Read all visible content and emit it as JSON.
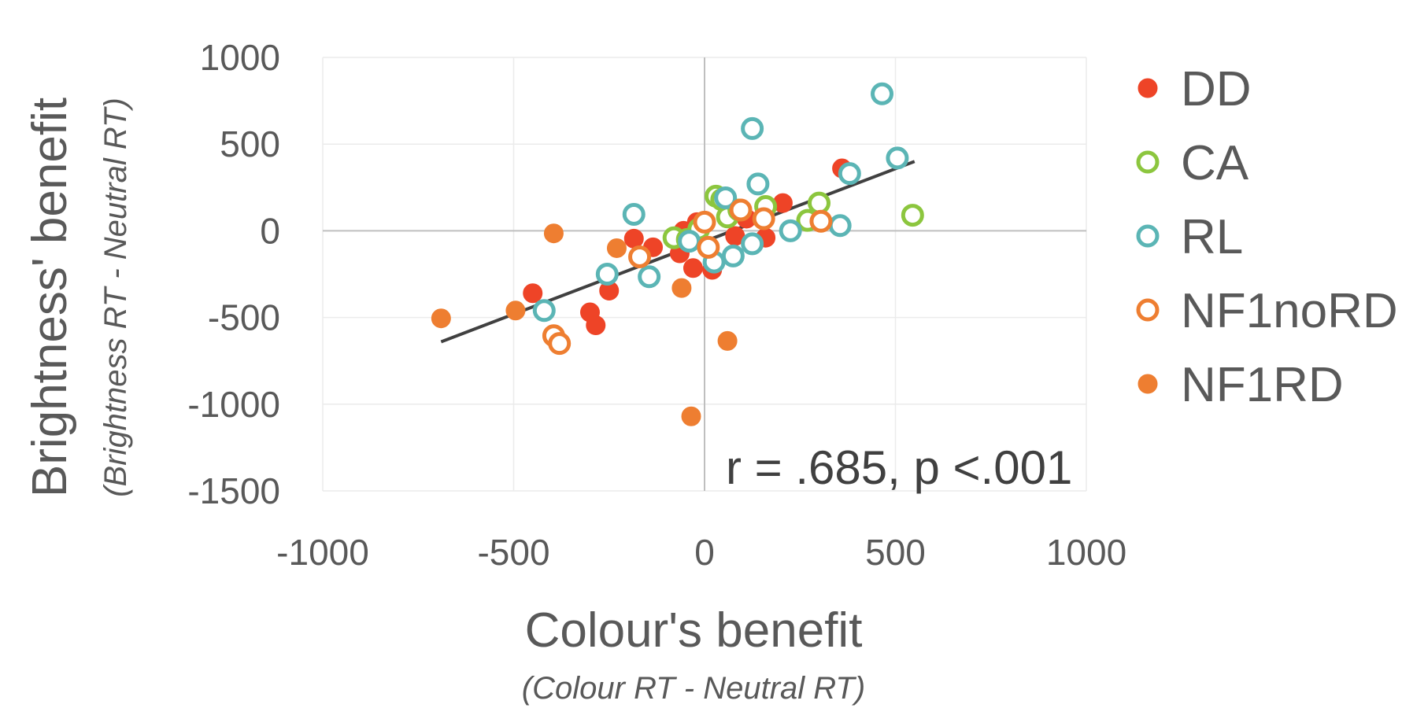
{
  "chart_data": {
    "type": "scatter",
    "xlabel": "Colour's benefit",
    "xlabel_sub": "(Colour RT - Neutral RT)",
    "ylabel": "Brightness' benefit",
    "ylabel_sub": "(Brightness RT - Neutral RT)",
    "xlim": [
      -1000,
      1000
    ],
    "ylim": [
      -1500,
      1000
    ],
    "x_ticks": [
      -1000,
      -500,
      0,
      500,
      1000
    ],
    "x_tick_labels": [
      "-1000",
      "-500",
      "0",
      "500",
      "1000"
    ],
    "y_ticks": [
      1000,
      500,
      0,
      -500,
      -1000,
      -1500
    ],
    "y_tick_labels": [
      "1000",
      "500",
      "0",
      "-500",
      "-1000",
      "-1500"
    ],
    "grid": true,
    "legend_position": "right",
    "annotation": "r = .685, p <.001",
    "trendline": {
      "x": [
        -690,
        550
      ],
      "y": [
        -640,
        400
      ],
      "color": "#404040"
    },
    "series": [
      {
        "name": "DD",
        "marker": "filled",
        "color": "#EE4427",
        "points": [
          [
            -450,
            -360
          ],
          [
            -300,
            -470
          ],
          [
            -285,
            -545
          ],
          [
            -250,
            -345
          ],
          [
            -185,
            -45
          ],
          [
            -135,
            -95
          ],
          [
            -65,
            -130
          ],
          [
            -55,
            0
          ],
          [
            -30,
            -215
          ],
          [
            -20,
            50
          ],
          [
            20,
            -225
          ],
          [
            80,
            -30
          ],
          [
            110,
            70
          ],
          [
            160,
            -40
          ],
          [
            205,
            160
          ],
          [
            360,
            360
          ]
        ]
      },
      {
        "name": "CA",
        "marker": "open",
        "color": "#8CC63E",
        "points": [
          [
            -80,
            -40
          ],
          [
            -45,
            -50
          ],
          [
            -15,
            10
          ],
          [
            30,
            200
          ],
          [
            45,
            180
          ],
          [
            60,
            80
          ],
          [
            90,
            120
          ],
          [
            160,
            140
          ],
          [
            270,
            60
          ],
          [
            300,
            160
          ],
          [
            545,
            90
          ]
        ]
      },
      {
        "name": "RL",
        "marker": "open",
        "color": "#5BB5B5",
        "points": [
          [
            -420,
            -460
          ],
          [
            -255,
            -250
          ],
          [
            -185,
            95
          ],
          [
            -145,
            -265
          ],
          [
            -40,
            -60
          ],
          [
            25,
            -180
          ],
          [
            55,
            190
          ],
          [
            75,
            -145
          ],
          [
            125,
            -75
          ],
          [
            125,
            590
          ],
          [
            140,
            270
          ],
          [
            225,
            0
          ],
          [
            355,
            30
          ],
          [
            380,
            330
          ],
          [
            465,
            790
          ],
          [
            505,
            420
          ]
        ]
      },
      {
        "name": "NF1noRD",
        "marker": "open",
        "color": "#EE7E31",
        "points": [
          [
            -395,
            -605
          ],
          [
            -380,
            -650
          ],
          [
            -170,
            -150
          ],
          [
            0,
            50
          ],
          [
            10,
            -95
          ],
          [
            95,
            120
          ],
          [
            155,
            70
          ],
          [
            305,
            55
          ]
        ]
      },
      {
        "name": "NF1RD",
        "marker": "filled",
        "color": "#EE7E31",
        "points": [
          [
            -690,
            -505
          ],
          [
            -495,
            -460
          ],
          [
            -395,
            -15
          ],
          [
            -230,
            -100
          ],
          [
            -60,
            -330
          ],
          [
            -35,
            -1070
          ],
          [
            60,
            -635
          ]
        ]
      }
    ]
  }
}
